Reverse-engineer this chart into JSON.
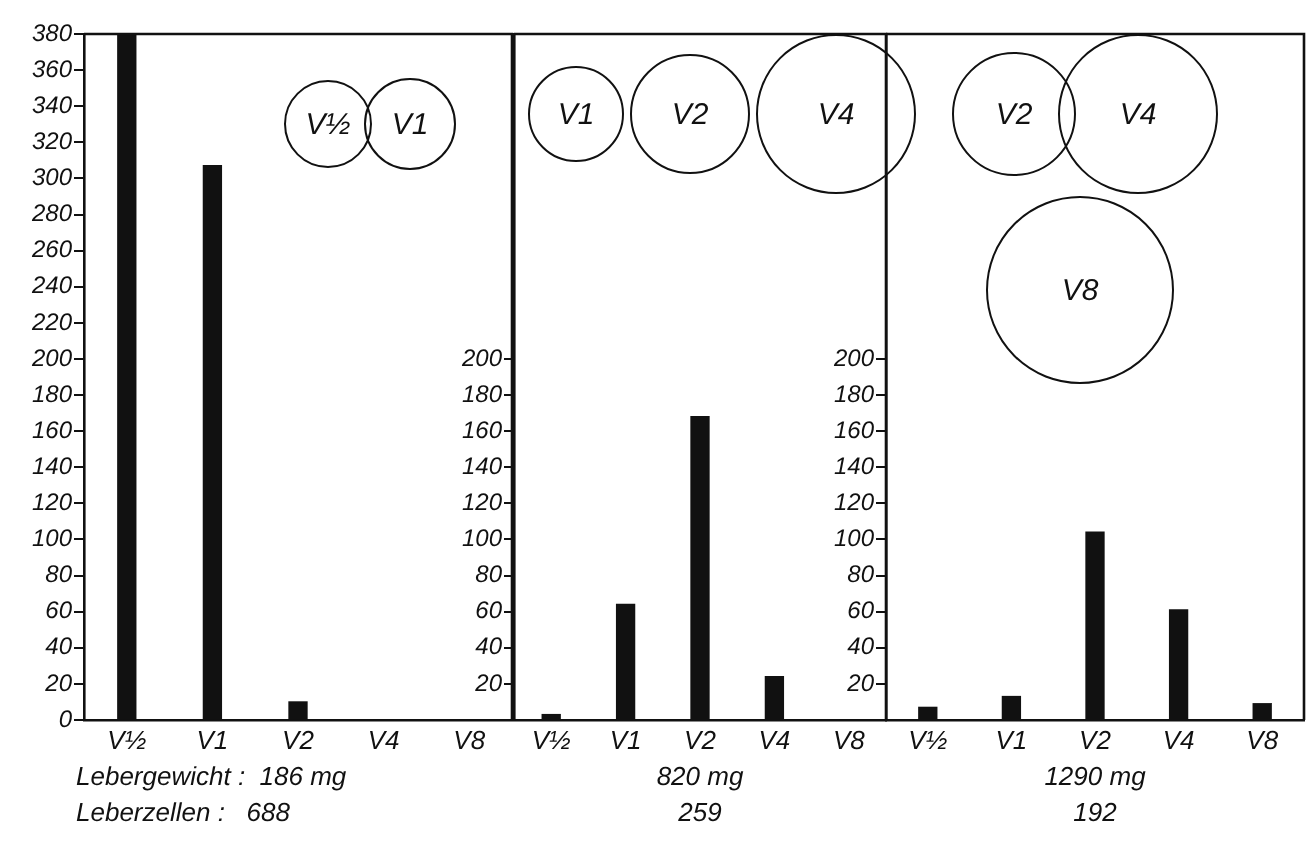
{
  "chart_data": [
    {
      "type": "bar",
      "categories": [
        "V½",
        "V1",
        "V2",
        "V4",
        "V8"
      ],
      "values": [
        380,
        307,
        10,
        0,
        0
      ],
      "color": "#111111",
      "ylim": [
        0,
        380
      ],
      "yticks": [
        0,
        20,
        40,
        60,
        80,
        100,
        120,
        140,
        160,
        180,
        200,
        220,
        240,
        260,
        280,
        300,
        320,
        340,
        360,
        380
      ],
      "grid": false,
      "legend": false,
      "xlabel": "Lebergewicht :  186 mg",
      "annotations": [
        "Leberzellen :   688",
        "V½",
        "V1"
      ]
    },
    {
      "type": "bar",
      "categories": [
        "V½",
        "V1",
        "V2",
        "V4",
        "V8"
      ],
      "values": [
        3,
        64,
        168,
        24,
        0
      ],
      "color": "#111111",
      "ylim": [
        0,
        380
      ],
      "yticks": [
        20,
        40,
        60,
        80,
        100,
        120,
        140,
        160,
        180,
        200
      ],
      "grid": false,
      "legend": false,
      "xlabel": "820 mg",
      "annotations": [
        "259",
        "V1",
        "V2",
        "V4"
      ]
    },
    {
      "type": "bar",
      "categories": [
        "V½",
        "V1",
        "V2",
        "V4",
        "V8"
      ],
      "values": [
        7,
        13,
        104,
        61,
        9
      ],
      "color": "#111111",
      "ylim": [
        0,
        380
      ],
      "yticks": [
        20,
        40,
        60,
        80,
        100,
        120,
        140,
        160,
        180,
        200
      ],
      "grid": false,
      "legend": false,
      "xlabel": "1290 mg",
      "annotations": [
        "192",
        "V2",
        "V4",
        "V8"
      ]
    }
  ]
}
